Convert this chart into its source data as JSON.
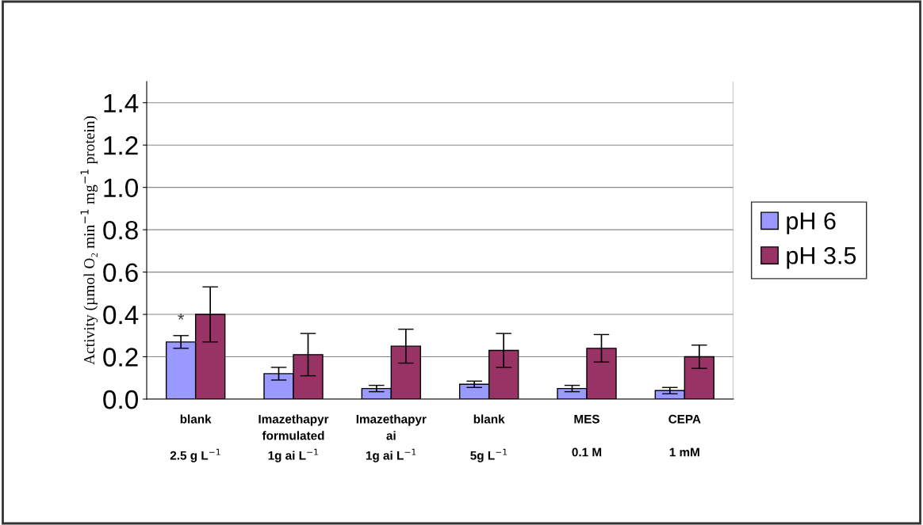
{
  "chart_data": {
    "type": "bar",
    "ylabel": "Activity (µmol O₂ min$^{−1}$ mg$^{−1}$ protein)",
    "categories": [
      "blank\n\n2.5 g L$^{−1}$",
      "Imazethapyr\nformulated\n1g ai L$^{−1}$",
      "Imazethapyr\nai\n1g ai L$^{−1}$",
      "blank\n\n5g L$^{−1}$",
      "MES\n\n0.1 M",
      "CEPA\n\n1 mM"
    ],
    "series": [
      {
        "name": "pH 6",
        "color": "#9999ff",
        "values": [
          0.27,
          0.12,
          0.05,
          0.07,
          0.05,
          0.04
        ],
        "errors": [
          0.03,
          0.03,
          0.015,
          0.015,
          0.015,
          0.015
        ]
      },
      {
        "name": "pH 3.5",
        "color": "#993366",
        "values": [
          0.4,
          0.21,
          0.25,
          0.23,
          0.24,
          0.2
        ],
        "errors": [
          0.13,
          0.1,
          0.08,
          0.08,
          0.065,
          0.055
        ]
      }
    ],
    "annotations": [
      "*"
    ],
    "ylim": [
      0,
      1.5
    ],
    "yticks": [
      {
        "value": 0,
        "label": "0.0"
      },
      {
        "value": 0.2,
        "label": "0.2"
      },
      {
        "value": 0.4,
        "label": "0.4"
      },
      {
        "value": 0.6,
        "label": "0.6"
      },
      {
        "value": 0.8,
        "label": "0.8"
      },
      {
        "value": 1.0,
        "label": "1.0"
      },
      {
        "value": 1.2,
        "label": "1.2"
      },
      {
        "value": 1.4,
        "label": "1.4"
      }
    ],
    "grid": "y",
    "legend": "right"
  }
}
